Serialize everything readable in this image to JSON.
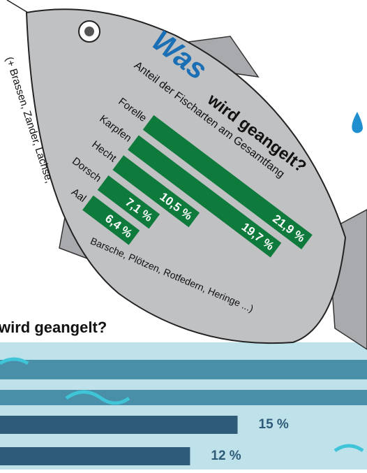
{
  "fish_chart": {
    "type": "bar",
    "title_parts": [
      "Was",
      "wird geangelt?"
    ],
    "subtitle": "Anteil der Fischarten am Gesamtfang",
    "categories": [
      "Forelle",
      "Karpfen",
      "Hecht",
      "Dorsch",
      "Aal"
    ],
    "values": [
      21.9,
      19.7,
      10.5,
      7.1,
      6.4
    ],
    "value_labels": [
      "21,9 %",
      "19,7 %",
      "10,5 %",
      "7,1 %",
      "6,4 %"
    ],
    "color": "#0e7a3c",
    "notes": [
      "(+ Brassen, Zander, Lachse,",
      "Barsche, Plötzen, Rotfedern, Heringe ...)"
    ]
  },
  "water_chart": {
    "type": "bar",
    "title": "wird geangelt?",
    "categories": [
      null,
      null
    ],
    "values": [
      15,
      12
    ],
    "value_labels": [
      "15 %",
      "12 %"
    ],
    "color": "#2d5b78"
  }
}
